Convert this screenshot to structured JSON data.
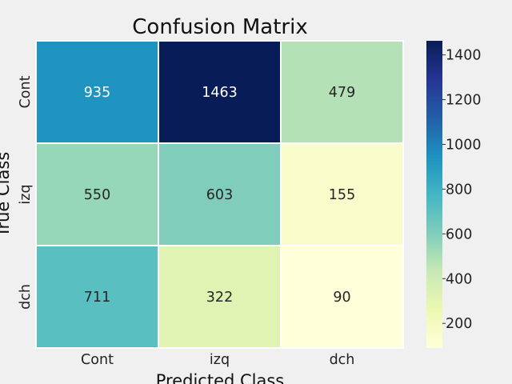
{
  "chart_data": {
    "type": "heatmap",
    "title": "Confusion Matrix",
    "xlabel": "Predicted Class",
    "ylabel": "True Class",
    "x_categories": [
      "Cont",
      "izq",
      "dch"
    ],
    "y_categories": [
      "Cont",
      "izq",
      "dch"
    ],
    "values": [
      [
        935,
        1463,
        479
      ],
      [
        550,
        603,
        155
      ],
      [
        711,
        322,
        90
      ]
    ],
    "colorscale": "YlGnBu",
    "colorbar": {
      "min": 90,
      "max": 1463,
      "ticks": [
        200,
        400,
        600,
        800,
        1000,
        1200,
        1400
      ]
    },
    "cell_label_colors": {
      "dark": "#ffffff",
      "light": "#262626"
    }
  }
}
